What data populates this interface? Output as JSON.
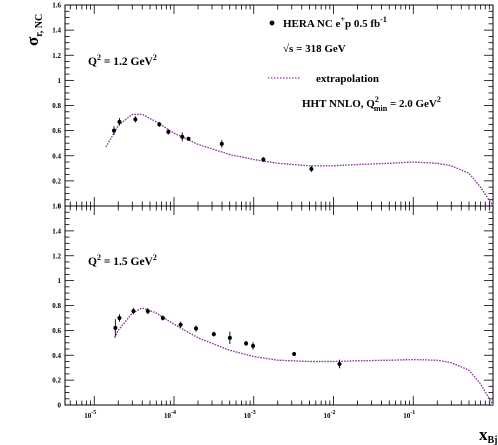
{
  "chart_data": [
    {
      "type": "scatter",
      "panel": "top",
      "title": "",
      "ylabel": "σr, NC",
      "ylabel_main": "σ",
      "ylabel_sub": "r, NC",
      "xscale": "log",
      "xlim": [
        4.3e-06,
        1
      ],
      "ylim": [
        0,
        1.6
      ],
      "yticks": [
        0,
        0.2,
        0.4,
        0.6,
        0.8,
        1,
        1.2,
        1.4,
        1.6
      ],
      "yticklabels": [
        "0",
        "0.2",
        "0.4",
        "0.6",
        "0.8",
        "1",
        "1.2",
        "1.4",
        "1.6"
      ],
      "annotation": {
        "main": "Q",
        "sup": "2",
        "rest": " = 1.2 GeV",
        "sup2": "2"
      },
      "series": [
        {
          "name": "HERA NC e+p 0.5 fb-1",
          "kind": "points",
          "color": "#000000",
          "x": [
            1.77e-05,
            2.07e-05,
            3.28e-05,
            6.55e-05,
            8.49e-05,
            0.000127,
            0.000152,
            0.000398,
            0.00132,
            0.00528
          ],
          "y": [
            0.6,
            0.67,
            0.69,
            0.65,
            0.59,
            0.55,
            0.535,
            0.495,
            0.37,
            0.295
          ],
          "yerr": [
            0.035,
            0.03,
            0.025,
            0.02,
            0.02,
            0.035,
            0.015,
            0.03,
            0.02,
            0.025
          ]
        },
        {
          "name": "extrapolation",
          "kind": "line",
          "color": "#8e3a9e",
          "x": [
            1.4e-05,
            2e-05,
            3e-05,
            4e-05,
            6e-05,
            0.0001,
            0.0002,
            0.0005,
            0.001,
            0.002,
            0.005,
            0.01,
            0.02,
            0.05,
            0.1,
            0.2,
            0.3,
            0.5,
            0.7,
            1.0
          ],
          "y": [
            0.47,
            0.64,
            0.73,
            0.73,
            0.67,
            0.58,
            0.49,
            0.41,
            0.37,
            0.34,
            0.32,
            0.32,
            0.33,
            0.34,
            0.35,
            0.34,
            0.32,
            0.26,
            0.15,
            0.0
          ]
        },
        {
          "name": "HHT NNLO",
          "kind": "line",
          "color": "#8e3a9e",
          "x": [
            1.4e-05,
            2e-05,
            3e-05,
            4e-05,
            6e-05,
            0.0001,
            0.0002,
            0.0005,
            0.001,
            0.002,
            0.005,
            0.01,
            0.02,
            0.05,
            0.1,
            0.2,
            0.3,
            0.5,
            0.7,
            1.0
          ],
          "y": [
            0.47,
            0.64,
            0.73,
            0.73,
            0.67,
            0.58,
            0.49,
            0.41,
            0.37,
            0.34,
            0.32,
            0.32,
            0.33,
            0.34,
            0.35,
            0.34,
            0.32,
            0.26,
            0.15,
            0.0
          ]
        }
      ]
    },
    {
      "type": "scatter",
      "panel": "bottom",
      "title": "",
      "xlabel": "xBj",
      "xlabel_main": "x",
      "xlabel_sub": "Bj",
      "xscale": "log",
      "xlim": [
        4.3e-06,
        1
      ],
      "ylim": [
        0,
        1.6
      ],
      "yticks": [
        0,
        0.2,
        0.4,
        0.6,
        0.8,
        1,
        1.2,
        1.4,
        1.6
      ],
      "yticklabels": [
        "0",
        "0.2",
        "0.4",
        "0.6",
        "0.8",
        "1",
        "1.2",
        "1.4",
        "1.6"
      ],
      "xticks": [
        1e-05,
        0.0001,
        0.001,
        0.01,
        0.1
      ],
      "xticklabels": [
        {
          "base": "10",
          "exp": "-5"
        },
        {
          "base": "10",
          "exp": "-4"
        },
        {
          "base": "10",
          "exp": "-3"
        },
        {
          "base": "10",
          "exp": "-2"
        },
        {
          "base": "10",
          "exp": "-1"
        }
      ],
      "annotation": {
        "main": "Q",
        "sup": "2",
        "rest": " = 1.5 GeV",
        "sup2": "2"
      },
      "series": [
        {
          "name": "HERA NC e+p 0.5 fb-1",
          "kind": "points",
          "color": "#000000",
          "x": [
            1.84e-05,
            2.07e-05,
            3.1e-05,
            4.7e-05,
            7.25e-05,
            0.000121,
            0.000189,
            0.000316,
            0.000502,
            0.000802,
            0.00098,
            0.00321,
            0.0119
          ],
          "y": [
            0.62,
            0.7,
            0.755,
            0.755,
            0.7,
            0.645,
            0.615,
            0.57,
            0.54,
            0.495,
            0.475,
            0.41,
            0.33
          ],
          "yerr": [
            0.07,
            0.03,
            0.025,
            0.025,
            0.02,
            0.025,
            0.025,
            0.02,
            0.05,
            0.02,
            0.03,
            0.005,
            0.035
          ]
        },
        {
          "name": "extrapolation",
          "kind": "line",
          "color": "#8e3a9e",
          "x": [
            1.8e-05,
            2e-05,
            3e-05,
            4e-05,
            6e-05,
            0.0001,
            0.0002,
            0.0005,
            0.001,
            0.002,
            0.005,
            0.01,
            0.02,
            0.05,
            0.1,
            0.2,
            0.3,
            0.5,
            0.7,
            1.0
          ],
          "y": [
            0.54,
            0.6,
            0.74,
            0.78,
            0.74,
            0.65,
            0.54,
            0.44,
            0.39,
            0.36,
            0.35,
            0.35,
            0.355,
            0.36,
            0.365,
            0.36,
            0.34,
            0.28,
            0.17,
            0.0
          ]
        },
        {
          "name": "HHT NNLO",
          "kind": "line",
          "color": "#8e3a9e",
          "x": [
            1.8e-05,
            2e-05,
            3e-05,
            4e-05,
            6e-05,
            0.0001,
            0.0002,
            0.0005,
            0.001,
            0.002,
            0.005,
            0.01,
            0.02,
            0.05,
            0.1,
            0.2,
            0.3,
            0.5,
            0.7,
            1.0
          ],
          "y": [
            0.54,
            0.6,
            0.74,
            0.78,
            0.74,
            0.65,
            0.54,
            0.44,
            0.39,
            0.36,
            0.35,
            0.35,
            0.355,
            0.36,
            0.365,
            0.36,
            0.34,
            0.28,
            0.17,
            0.0
          ]
        }
      ]
    }
  ],
  "legend": {
    "placement": "top-right",
    "marker_entry": {
      "pre": "HERA NC e",
      "sup": "+",
      "mid": "p 0.5 fb",
      "sup2": "-1"
    },
    "sqrt_s": {
      "symbol": "√",
      "text": "s = 318 GeV"
    },
    "line_entry": "extrapolation",
    "fit_label": {
      "pre": "HHT NNLO, Q",
      "sup": "2",
      "sub": "min",
      "post": " = 2.0 GeV",
      "sup2": "2"
    }
  }
}
